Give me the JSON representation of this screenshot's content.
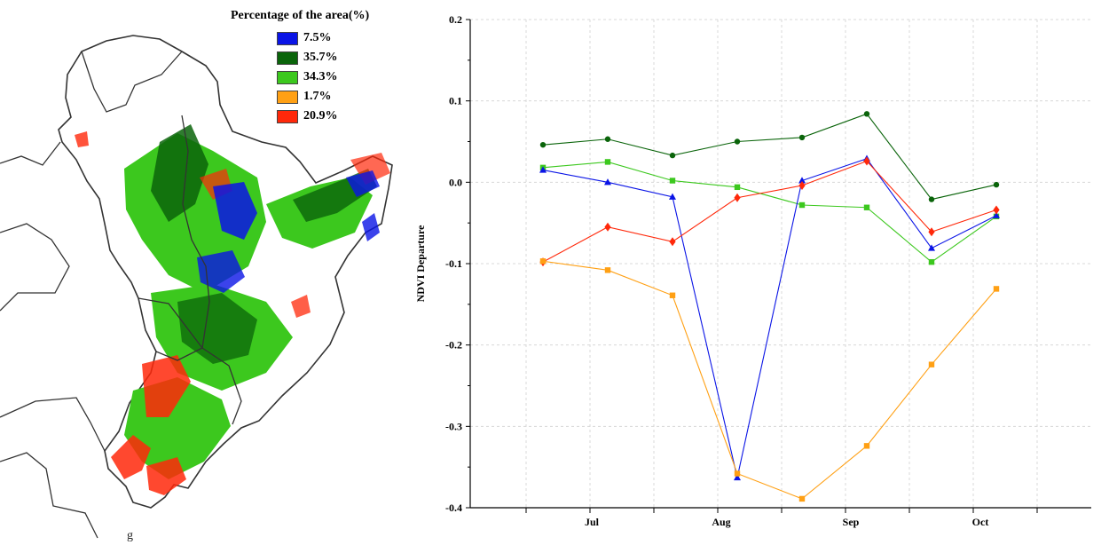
{
  "map": {
    "legend_title": "Percentage of the area(%)",
    "legend_items": [
      {
        "label": "7.5%",
        "color": "#0a14e6"
      },
      {
        "label": "35.7%",
        "color": "#0a640a"
      },
      {
        "label": "34.3%",
        "color": "#3cc81e"
      },
      {
        "label": "1.7%",
        "color": "#ffa014"
      },
      {
        "label": "20.9%",
        "color": "#ff280a"
      }
    ],
    "scale_glyph": "g"
  },
  "chart_data": {
    "type": "line",
    "title": "",
    "xlabel": "",
    "ylabel": "NDVI Departure",
    "ylim": [
      -0.4,
      0.2
    ],
    "yticks": [
      "0.2",
      "0.1",
      "0.0",
      "-0.1",
      "-0.2",
      "-0.3",
      "-0.4"
    ],
    "x_ticks": [
      "Jul",
      "Aug",
      "Sep",
      "Oct"
    ],
    "grid": true,
    "series": [
      {
        "color": "#0a640a",
        "marker": "circle",
        "values": [
          0.046,
          0.053,
          0.033,
          0.05,
          0.055,
          0.084,
          -0.021,
          -0.003
        ]
      },
      {
        "color": "#3cc81e",
        "marker": "square",
        "values": [
          0.018,
          0.025,
          0.002,
          -0.006,
          -0.028,
          -0.031,
          -0.098,
          -0.042
        ]
      },
      {
        "color": "#0a14e6",
        "marker": "triangle",
        "values": [
          0.015,
          0.0,
          -0.018,
          -0.363,
          0.002,
          0.029,
          -0.081,
          -0.041
        ]
      },
      {
        "color": "#ff280a",
        "marker": "diamond",
        "values": [
          -0.098,
          -0.055,
          -0.073,
          -0.019,
          -0.004,
          0.026,
          -0.061,
          -0.034
        ]
      },
      {
        "color": "#ffa014",
        "marker": "square",
        "values": [
          -0.097,
          -0.108,
          -0.139,
          -0.358,
          -0.389,
          -0.324,
          -0.224,
          -0.131
        ]
      }
    ]
  }
}
